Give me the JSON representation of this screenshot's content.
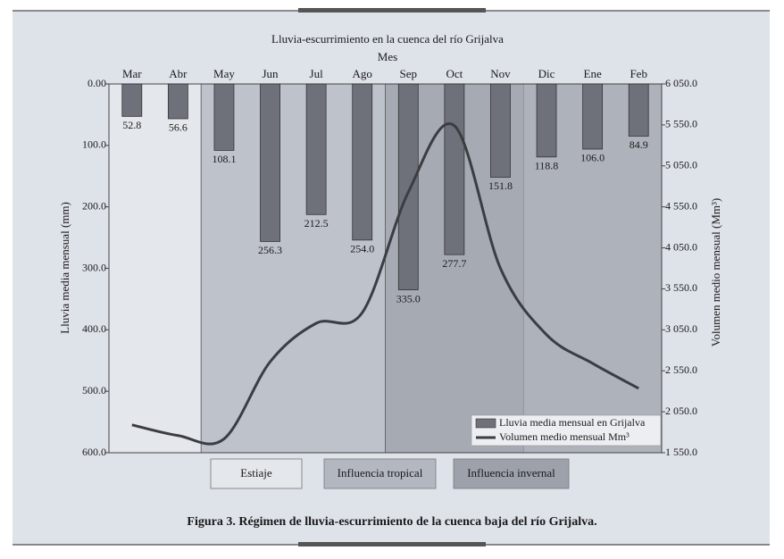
{
  "chart_data": {
    "type": "bar_line",
    "title": "Lluvia-escurrimiento en la cuenca del río Grijalva",
    "x_label": "Mes",
    "y_label": "Lluvia media mensual (mm)",
    "y2_label": "Volumen medio mensual (Mm³)",
    "caption": "Figura 3. Régimen de lluvia-escurrimiento de la cuenca baja del río Grijalva.",
    "categories": [
      "Mar",
      "Abr",
      "May",
      "Jun",
      "Jul",
      "Ago",
      "Sep",
      "Oct",
      "Nov",
      "Dic",
      "Ene",
      "Feb"
    ],
    "series": [
      {
        "name": "Lluvia media mensual en Grijalva",
        "type": "bar",
        "color": "#6e7179",
        "values": [
          52.8,
          56.6,
          108.1,
          256.3,
          212.5,
          254.0,
          335.0,
          277.7,
          151.8,
          118.8,
          106.0,
          84.9
        ],
        "value_labels": [
          "52.8",
          "56.6",
          "108.1",
          "256.3",
          "212.5",
          "254.0",
          "335.0",
          "277.7",
          "151.8",
          "118.8",
          "106.0",
          "84.9"
        ]
      },
      {
        "name": "Volumen medio mensual Mm³",
        "type": "line",
        "axis": "y2",
        "color": "#3b3d43",
        "values": [
          1890,
          1760,
          1720,
          2660,
          3130,
          3260,
          4730,
          5540,
          3800,
          2990,
          2640,
          2335
        ]
      }
    ],
    "ylim": [
      0,
      600
    ],
    "y_inverted": true,
    "yticks": [
      {
        "value": 0,
        "label": "0.00"
      },
      {
        "value": 100,
        "label": "100.0"
      },
      {
        "value": 200,
        "label": "200.0"
      },
      {
        "value": 300,
        "label": "300.0"
      },
      {
        "value": 400,
        "label": "400.0"
      },
      {
        "value": 500,
        "label": "500.0"
      },
      {
        "value": 600,
        "label": "600.0"
      }
    ],
    "y2lim": [
      1550,
      6050
    ],
    "y2ticks": [
      {
        "value": 6050,
        "label": "6 050.0"
      },
      {
        "value": 5550,
        "label": "5 550.0"
      },
      {
        "value": 5050,
        "label": "5 050.0"
      },
      {
        "value": 4550,
        "label": "4 550.0"
      },
      {
        "value": 4050,
        "label": "4 050.0"
      },
      {
        "value": 3550,
        "label": "3 550.0"
      },
      {
        "value": 3050,
        "label": "3 050.0"
      },
      {
        "value": 2550,
        "label": "2 550.0"
      },
      {
        "value": 2050,
        "label": "2 050.0"
      },
      {
        "value": 1550,
        "label": "1 550.0"
      }
    ],
    "legend": "lower right",
    "regions": [
      {
        "label": "Estiaje",
        "start": "Mar",
        "end": "Abr",
        "color": "#e4e7eb"
      },
      {
        "label": "Influencia tropical",
        "start": "May",
        "end": "Nov",
        "color": "#b3b7bf"
      },
      {
        "label": "Influencia invernal",
        "start": "Sep",
        "end": "Feb",
        "color": "#9da1a9"
      }
    ]
  }
}
